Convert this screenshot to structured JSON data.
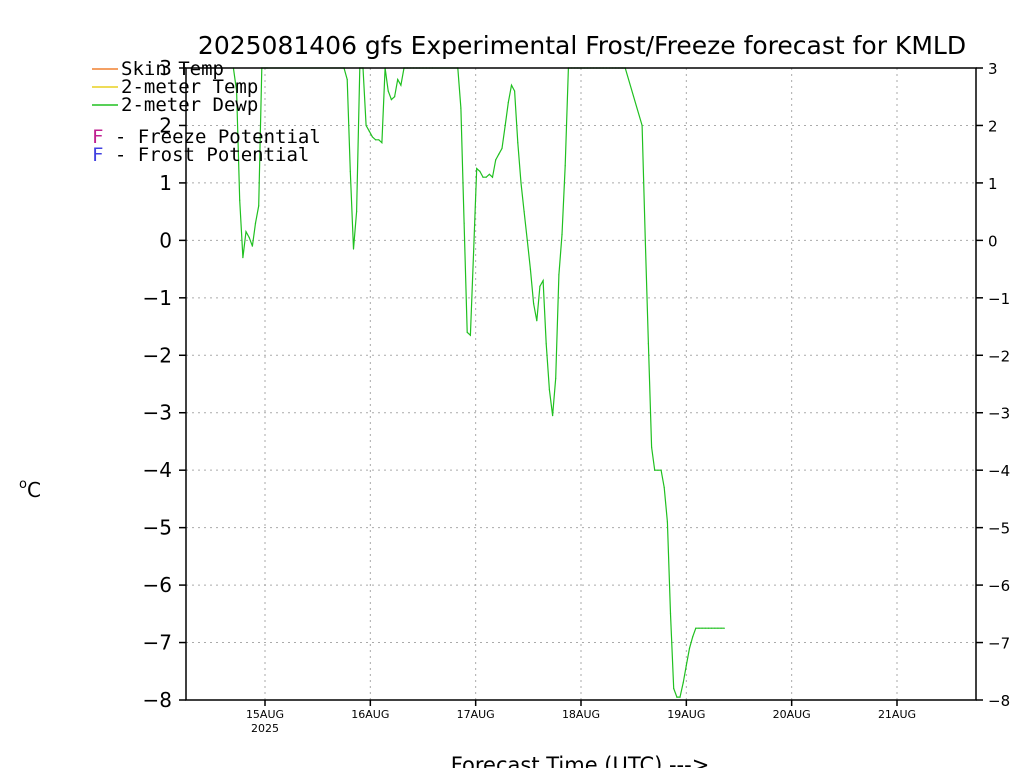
{
  "chart_data": {
    "type": "line",
    "title": "2025081406 gfs Experimental Frost/Freeze forecast for KMLD",
    "xlabel": "Forecast Time (UTC) --->",
    "ylabel": "°C",
    "y_unit_superscript": "o",
    "y_unit_letter": "C",
    "ylim": [
      -8,
      3
    ],
    "yticks": [
      3,
      2,
      1,
      0,
      -1,
      -2,
      -3,
      -4,
      -5,
      -6,
      -7,
      -8
    ],
    "ytick_labels": [
      "3",
      "2",
      "1",
      "0",
      "−1",
      "−2",
      "−3",
      "−4",
      "−5",
      "−6",
      "−7",
      "−8"
    ],
    "xlim_days": [
      14.25,
      21.75
    ],
    "x_ticks": [
      {
        "day": 15,
        "label": "15AUG",
        "sublabel": "2025"
      },
      {
        "day": 16,
        "label": "16AUG",
        "sublabel": ""
      },
      {
        "day": 17,
        "label": "17AUG",
        "sublabel": ""
      },
      {
        "day": 18,
        "label": "18AUG",
        "sublabel": ""
      },
      {
        "day": 19,
        "label": "19AUG",
        "sublabel": ""
      },
      {
        "day": 20,
        "label": "20AUG",
        "sublabel": ""
      },
      {
        "day": 21,
        "label": "21AUG",
        "sublabel": ""
      }
    ],
    "grid": true,
    "legend_position": "top-left",
    "legend": [
      {
        "label": "Skin Temp",
        "color": "#f08030"
      },
      {
        "label": "2-meter Temp",
        "color": "#e8d020"
      },
      {
        "label": "2-meter Dewp",
        "color": "#20c020"
      }
    ],
    "potential_legend": [
      {
        "letter": "F",
        "text": " - Freeze Potential",
        "color": "#c02090"
      },
      {
        "letter": "F",
        "text": " - Frost Potential",
        "color": "#4040e0"
      }
    ],
    "series": [
      {
        "name": "2-meter Dewp",
        "color": "#20c020",
        "x_days": [
          14.7,
          14.73,
          14.76,
          14.79,
          14.82,
          14.85,
          14.88,
          14.91,
          14.94,
          14.97,
          15.0,
          15.01,
          15.02,
          15.75,
          15.78,
          15.81,
          15.84,
          15.87,
          15.9,
          15.93,
          15.96,
          15.99,
          16.02,
          16.05,
          16.08,
          16.11,
          16.14,
          16.17,
          16.2,
          16.23,
          16.26,
          16.29,
          16.32,
          16.35,
          16.38,
          16.41,
          16.44,
          16.47,
          16.5,
          16.53,
          16.56,
          16.59,
          16.83,
          16.86,
          16.89,
          16.92,
          16.95,
          16.98,
          17.01,
          17.04,
          17.07,
          17.1,
          17.13,
          17.16,
          17.19,
          17.22,
          17.25,
          17.28,
          17.31,
          17.34,
          17.37,
          17.4,
          17.43,
          17.46,
          17.49,
          17.52,
          17.55,
          17.58,
          17.61,
          17.64,
          17.67,
          17.7,
          17.73,
          17.76,
          17.79,
          17.82,
          17.85,
          17.88,
          17.91,
          17.94,
          17.97,
          18.0,
          18.03,
          18.06,
          18.09,
          18.12,
          18.15,
          18.18,
          18.21,
          18.24,
          18.27,
          18.3,
          18.33,
          18.36,
          18.39,
          18.42,
          18.58,
          18.61,
          18.64,
          18.67,
          18.7,
          18.73,
          18.76,
          18.79,
          18.82,
          18.85,
          18.88,
          18.91,
          18.94,
          18.97,
          19.0,
          19.03,
          19.06,
          19.09,
          19.12,
          19.15,
          19.18,
          19.21,
          19.24,
          19.27,
          19.3,
          19.33,
          19.36
        ],
        "values": [
          3.0,
          2.6,
          0.7,
          -0.3,
          0.15,
          0.05,
          -0.1,
          0.3,
          0.6,
          3.0,
          3.0,
          3.0,
          3.0,
          3.0,
          2.8,
          1.2,
          -0.15,
          0.5,
          3.0,
          3.0,
          2.0,
          1.9,
          1.8,
          1.75,
          1.75,
          1.7,
          3.0,
          2.6,
          2.45,
          2.5,
          2.8,
          2.7,
          3.0,
          3.0,
          3.0,
          3.0,
          3.0,
          3.0,
          3.0,
          3.0,
          3.0,
          3.0,
          3.0,
          2.3,
          0.3,
          -1.6,
          -1.65,
          -0.2,
          1.25,
          1.2,
          1.1,
          1.1,
          1.15,
          1.1,
          1.4,
          1.5,
          1.6,
          2.0,
          2.4,
          2.7,
          2.6,
          1.7,
          1.0,
          0.5,
          0.0,
          -0.5,
          -1.1,
          -1.4,
          -0.8,
          -0.7,
          -1.8,
          -2.6,
          -3.05,
          -2.4,
          -0.6,
          0.1,
          1.3,
          3.0,
          3.0,
          3.0,
          3.0,
          3.0,
          3.0,
          3.0,
          3.0,
          3.0,
          3.0,
          3.0,
          3.0,
          3.0,
          3.0,
          3.0,
          3.0,
          3.0,
          3.0,
          3.0,
          2.0,
          0.0,
          -1.8,
          -3.6,
          -4.0,
          -4.0,
          -4.0,
          -4.3,
          -4.9,
          -6.5,
          -7.8,
          -7.95,
          -7.95,
          -7.7,
          -7.4,
          -7.1,
          -6.9,
          -6.75,
          -6.75,
          -6.75,
          -6.75,
          -6.75,
          -6.75,
          -6.75,
          -6.75,
          -6.75,
          -6.75
        ]
      }
    ]
  }
}
